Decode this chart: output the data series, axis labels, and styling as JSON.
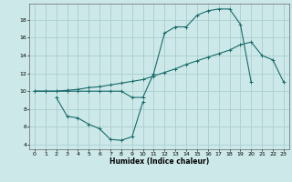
{
  "xlabel": "Humidex (Indice chaleur)",
  "bg_color": "#cce8e8",
  "grid_color": "#aacece",
  "line_color": "#1a6b6b",
  "xlim": [
    -0.5,
    23.5
  ],
  "ylim": [
    3.5,
    19.8
  ],
  "xticks": [
    0,
    1,
    2,
    3,
    4,
    5,
    6,
    7,
    8,
    9,
    10,
    11,
    12,
    13,
    14,
    15,
    16,
    17,
    18,
    19,
    20,
    21,
    22,
    23
  ],
  "yticks": [
    4,
    6,
    8,
    10,
    12,
    14,
    16,
    18
  ],
  "line1_x": [
    0,
    1,
    2,
    3,
    4,
    5,
    6,
    7,
    8,
    9,
    10,
    11,
    12,
    13,
    14,
    15,
    16,
    17,
    18,
    19,
    20
  ],
  "line1_y": [
    10,
    10,
    10,
    10,
    10,
    10,
    10,
    10,
    10,
    9.3,
    9.3,
    12.0,
    16.5,
    17.2,
    17.2,
    18.5,
    19.0,
    19.2,
    19.2,
    17.5,
    11.0
  ],
  "line2_x": [
    0,
    1,
    2,
    3,
    4,
    5,
    6,
    7,
    8,
    9,
    10,
    11,
    12,
    13,
    14,
    15,
    16,
    17,
    18,
    19,
    20,
    21,
    22,
    23
  ],
  "line2_y": [
    10,
    10,
    10,
    10.1,
    10.2,
    10.4,
    10.5,
    10.7,
    10.9,
    11.1,
    11.3,
    11.7,
    12.1,
    12.5,
    13.0,
    13.4,
    13.8,
    14.2,
    14.6,
    15.2,
    15.5,
    14.0,
    13.5,
    11.0
  ],
  "line3_x": [
    2,
    3,
    4,
    5,
    6,
    7,
    8,
    9,
    10
  ],
  "line3_y": [
    9.3,
    7.2,
    7.0,
    6.3,
    5.8,
    4.6,
    4.5,
    4.9,
    8.8
  ]
}
